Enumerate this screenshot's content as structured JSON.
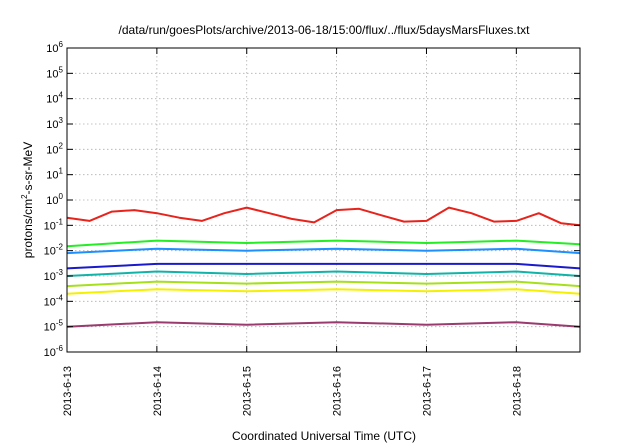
{
  "chart_data": {
    "type": "line",
    "title": "/data/run/goesPlots/archive/2013-06-18/15:00/flux/../flux/5daysMarsFluxes.txt",
    "xlabel": "Coordinated Universal Time (UTC)",
    "ylabel": "protons/cm2-s-sr-MeV",
    "y_scale": "log",
    "ylim": [
      1e-06,
      1000000.0
    ],
    "xlim": [
      "2013-06-13 00:00",
      "2013-06-18 17:00"
    ],
    "grid": true,
    "legend": "none",
    "x_ticks": [
      "2013-6-13",
      "2013-6-14",
      "2013-6-15",
      "2013-6-16",
      "2013-6-17",
      "2013-6-18"
    ],
    "y_ticks": [
      -6,
      -5,
      -4,
      -3,
      -2,
      -1,
      0,
      1,
      2,
      3,
      4,
      5,
      6
    ],
    "series": [
      {
        "color": "#e8231c",
        "x": [
          "2013-06-13 00:00",
          "2013-06-13 06:00",
          "2013-06-13 12:00",
          "2013-06-13 18:00",
          "2013-06-14 00:00",
          "2013-06-14 06:00",
          "2013-06-14 12:00",
          "2013-06-14 18:00",
          "2013-06-15 00:00",
          "2013-06-15 06:00",
          "2013-06-15 12:00",
          "2013-06-15 18:00",
          "2013-06-16 00:00",
          "2013-06-16 06:00",
          "2013-06-16 12:00",
          "2013-06-16 18:00",
          "2013-06-17 00:00",
          "2013-06-17 06:00",
          "2013-06-17 12:00",
          "2013-06-17 18:00",
          "2013-06-18 00:00",
          "2013-06-18 06:00",
          "2013-06-18 12:00",
          "2013-06-18 17:00"
        ],
        "y": [
          0.2,
          0.15,
          0.35,
          0.4,
          0.3,
          0.2,
          0.15,
          0.3,
          0.5,
          0.3,
          0.18,
          0.13,
          0.4,
          0.45,
          0.25,
          0.14,
          0.15,
          0.5,
          0.3,
          0.14,
          0.15,
          0.3,
          0.12,
          0.1
        ]
      },
      {
        "color": "#22ee22",
        "x": [
          "2013-06-13 00:00",
          "2013-06-14 00:00",
          "2013-06-15 00:00",
          "2013-06-16 00:00",
          "2013-06-17 00:00",
          "2013-06-18 00:00",
          "2013-06-18 17:00"
        ],
        "y": [
          0.015,
          0.025,
          0.02,
          0.025,
          0.02,
          0.025,
          0.018
        ]
      },
      {
        "color": "#1e8fff",
        "x": [
          "2013-06-13 00:00",
          "2013-06-14 00:00",
          "2013-06-15 00:00",
          "2013-06-16 00:00",
          "2013-06-17 00:00",
          "2013-06-18 00:00",
          "2013-06-18 17:00"
        ],
        "y": [
          0.008,
          0.012,
          0.01,
          0.012,
          0.01,
          0.012,
          0.008
        ]
      },
      {
        "color": "#1a1acc",
        "x": [
          "2013-06-13 00:00",
          "2013-06-14 00:00",
          "2013-06-15 00:00",
          "2013-06-16 00:00",
          "2013-06-17 00:00",
          "2013-06-18 00:00",
          "2013-06-18 17:00"
        ],
        "y": [
          0.002,
          0.003,
          0.003,
          0.003,
          0.003,
          0.003,
          0.002
        ]
      },
      {
        "color": "#11b3a8",
        "x": [
          "2013-06-13 00:00",
          "2013-06-14 00:00",
          "2013-06-15 00:00",
          "2013-06-16 00:00",
          "2013-06-17 00:00",
          "2013-06-18 00:00",
          "2013-06-18 17:00"
        ],
        "y": [
          0.001,
          0.0015,
          0.0012,
          0.0015,
          0.0012,
          0.0015,
          0.001
        ]
      },
      {
        "color": "#a6e01a",
        "x": [
          "2013-06-13 00:00",
          "2013-06-14 00:00",
          "2013-06-15 00:00",
          "2013-06-16 00:00",
          "2013-06-17 00:00",
          "2013-06-18 00:00",
          "2013-06-18 17:00"
        ],
        "y": [
          0.0004,
          0.0006,
          0.0005,
          0.0006,
          0.0005,
          0.0006,
          0.0004
        ]
      },
      {
        "color": "#f5f000",
        "x": [
          "2013-06-13 00:00",
          "2013-06-14 00:00",
          "2013-06-15 00:00",
          "2013-06-16 00:00",
          "2013-06-17 00:00",
          "2013-06-18 00:00",
          "2013-06-18 17:00"
        ],
        "y": [
          0.0002,
          0.0003,
          0.00025,
          0.0003,
          0.00025,
          0.0003,
          0.0002
        ]
      },
      {
        "color": "#9a3a6e",
        "x": [
          "2013-06-13 00:00",
          "2013-06-14 00:00",
          "2013-06-15 00:00",
          "2013-06-16 00:00",
          "2013-06-17 00:00",
          "2013-06-18 00:00",
          "2013-06-18 17:00"
        ],
        "y": [
          1e-05,
          1.5e-05,
          1.2e-05,
          1.5e-05,
          1.2e-05,
          1.5e-05,
          1e-05
        ]
      }
    ]
  }
}
